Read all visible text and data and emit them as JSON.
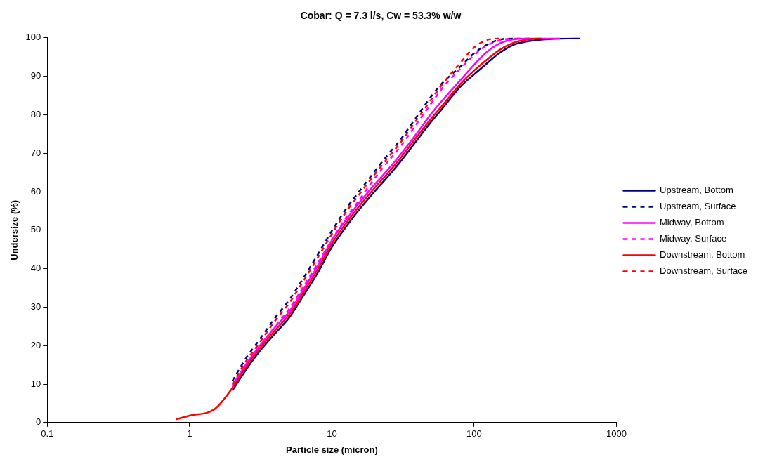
{
  "chart_data": {
    "type": "line",
    "title": "Cobar: Q = 7.3 l/s, Cw = 53.3% w/w",
    "xlabel": "Particle size (micron)",
    "ylabel": "Undersize (%)",
    "log": "x",
    "grid": false,
    "legend": "right",
    "marker": "none",
    "xlim": [
      0.1,
      1000
    ],
    "xticks": [
      0.1,
      1,
      10,
      100,
      1000
    ],
    "ylim": [
      0,
      100
    ],
    "yticks": [
      0,
      10,
      20,
      30,
      40,
      50,
      60,
      70,
      80,
      90,
      100
    ],
    "series": [
      {
        "name": "Upstream, Bottom",
        "color": "#000080",
        "line_style": "solid",
        "x": [
          2,
          2.5,
          3,
          4,
          5,
          6,
          8,
          10,
          13,
          15,
          20,
          25,
          30,
          40,
          50,
          60,
          80,
          100,
          120,
          150,
          200,
          550
        ],
        "values": [
          8.3,
          13.8,
          17.8,
          23.2,
          27.2,
          31.7,
          39.1,
          45.6,
          51.6,
          54.6,
          60.1,
          64.1,
          67.6,
          73.6,
          78.2,
          81.7,
          87.3,
          90.5,
          93,
          96,
          98.5,
          100
        ]
      },
      {
        "name": "Upstream, Surface",
        "color": "#000080",
        "line_style": "dashed",
        "x": [
          2,
          2.5,
          3,
          4,
          5,
          6,
          8,
          10,
          13,
          15,
          20,
          25,
          30,
          40,
          50,
          60,
          80,
          100,
          120,
          150,
          200,
          250
        ],
        "values": [
          10.8,
          16.8,
          20.8,
          27.3,
          31.8,
          36.3,
          43.8,
          49.8,
          56.3,
          59.3,
          65.3,
          69.8,
          73.3,
          79.8,
          84.8,
          88.3,
          92.5,
          96,
          98,
          99.5,
          99.9,
          100
        ]
      },
      {
        "name": "Midway, Bottom",
        "color": "#ff00ff",
        "line_style": "solid",
        "x": [
          2,
          2.5,
          3,
          4,
          5,
          6,
          8,
          10,
          13,
          15,
          20,
          25,
          30,
          40,
          50,
          60,
          80,
          100,
          120,
          150,
          200,
          400
        ],
        "values": [
          9.7,
          15.2,
          19.2,
          24.8,
          28.8,
          33.3,
          40.9,
          47.4,
          53.4,
          56.4,
          61.9,
          65.9,
          69.4,
          75.4,
          80.3,
          83.8,
          89,
          93,
          96,
          98.5,
          99.7,
          100
        ]
      },
      {
        "name": "Midway, Surface",
        "color": "#ff00ff",
        "line_style": "dashed",
        "x": [
          2,
          2.5,
          3,
          4,
          5,
          6,
          8,
          10,
          13,
          15,
          20,
          25,
          30,
          40,
          50,
          60,
          80,
          100,
          120,
          150,
          200
        ],
        "values": [
          9.3,
          15,
          19,
          25,
          29.5,
          34,
          41.5,
          47.5,
          54,
          57,
          63.5,
          68,
          71.5,
          78,
          83,
          87,
          92,
          95.5,
          97.8,
          99.3,
          100
        ]
      },
      {
        "name": "Downstream, Bottom",
        "color": "#ff0000",
        "line_style": "solid",
        "x": [
          0.8,
          1,
          1.5,
          2,
          2.5,
          3,
          4,
          5,
          6,
          8,
          10,
          13,
          15,
          20,
          25,
          30,
          40,
          50,
          60,
          80,
          100,
          120,
          150,
          200,
          300
        ],
        "values": [
          0.8,
          1.8,
          3.5,
          9,
          14.5,
          18.5,
          24,
          28,
          32.5,
          40,
          46.5,
          52.5,
          55.5,
          61,
          65,
          68.5,
          74.5,
          79,
          82.5,
          88,
          91.5,
          94,
          96.8,
          99,
          100
        ]
      },
      {
        "name": "Downstream, Surface",
        "color": "#ff0000",
        "line_style": "dashed",
        "x": [
          2,
          2.5,
          3,
          4,
          5,
          6,
          8,
          10,
          13,
          15,
          20,
          25,
          30,
          40,
          50,
          60,
          80,
          100,
          120,
          150
        ],
        "values": [
          10,
          16,
          20,
          26.5,
          31,
          35.5,
          43,
          49,
          55.5,
          58.5,
          64.5,
          69,
          72.5,
          79,
          84,
          88,
          93.5,
          97.5,
          99.3,
          100
        ]
      }
    ]
  }
}
